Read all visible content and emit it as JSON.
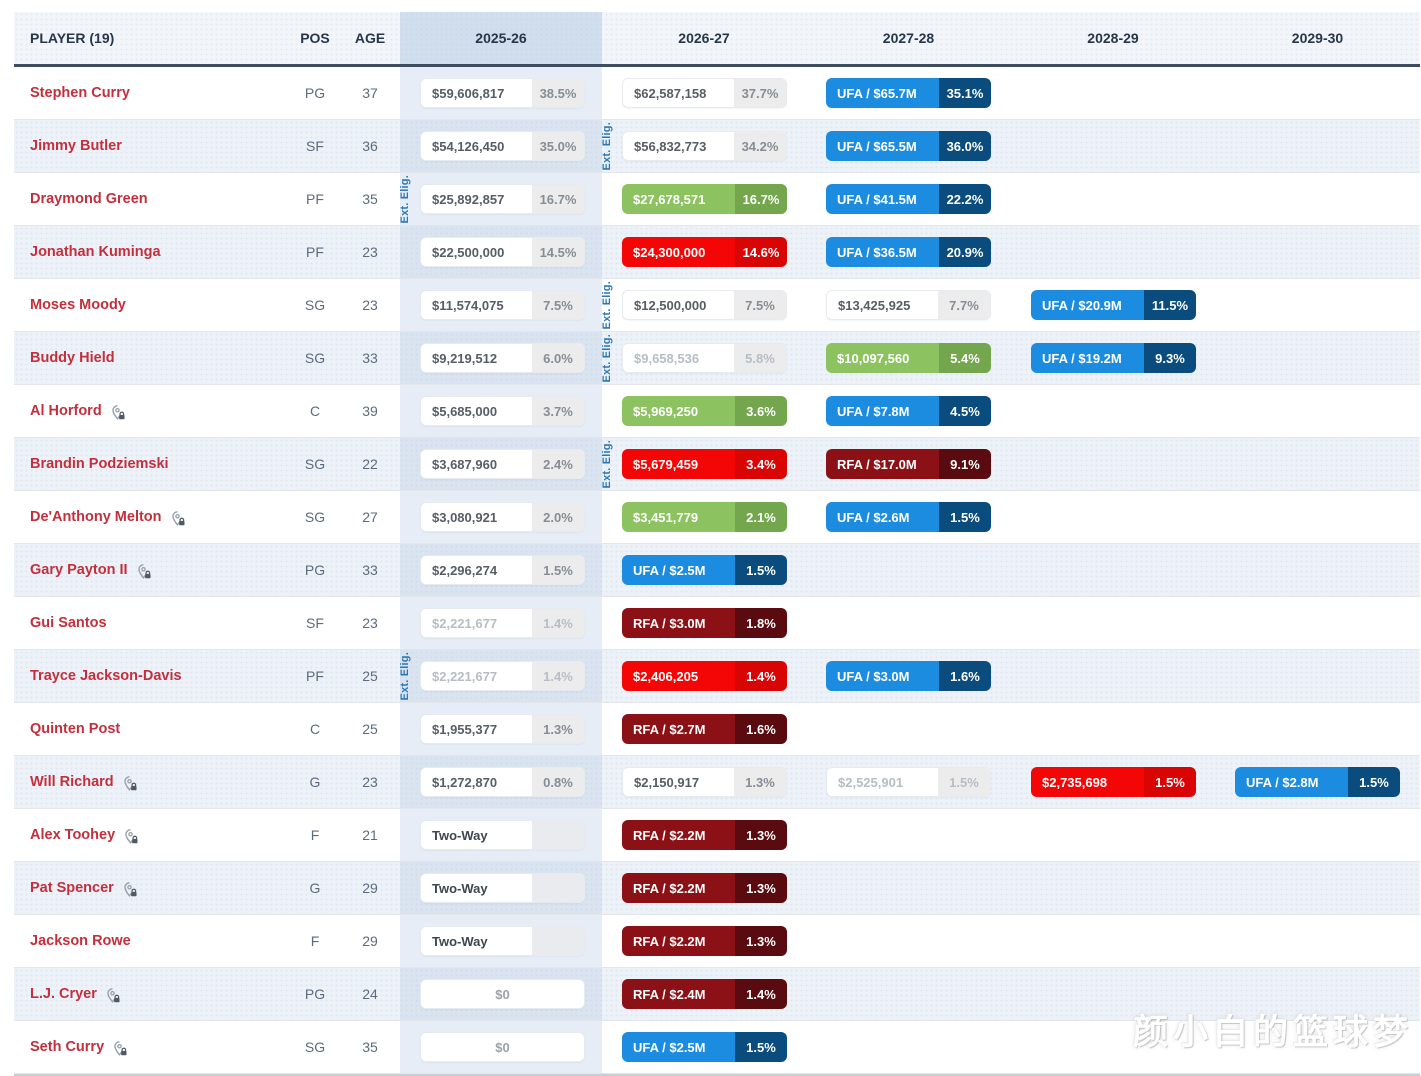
{
  "header": {
    "player_label": "PLAYER (19)",
    "pos_label": "POS",
    "age_label": "AGE",
    "seasons": [
      "2025-26",
      "2026-27",
      "2027-28",
      "2028-29",
      "2029-30"
    ]
  },
  "ext_elig_label": "Ext. Elig.",
  "watermark": "颜小白的篮球梦",
  "icons": {
    "pin_lock": "pin-lock-icon"
  },
  "colors": {
    "player-red": "#c32f3d",
    "header-text": "#27364a",
    "pos-text": "#5b6b7d",
    "ext-blue": "#2b77b6",
    "row-alt": "#edf2f8",
    "col-highlight": "rgba(178,200,228,0.32)",
    "col-highlight-head": "rgba(165,190,222,0.42)",
    "chip-green": "#8cc360",
    "chip-green-dark": "#73a64d",
    "chip-red": "#f40606",
    "chip-red-dark": "#d90505",
    "chip-blue": "#1b8ce0",
    "chip-blue-dark": "#0a4c7d",
    "chip-maroon": "#8c1117",
    "chip-maroon-dark": "#5a0b0f",
    "chip-gray-pct": "#ececec",
    "chip-text": "#575d66",
    "chip-muted-text": "#b7bdc5",
    "divider": "#e2e6ea",
    "header-border": "#3e4c60"
  },
  "players": [
    {
      "name": "Stephen Curry",
      "pos": "PG",
      "age": "37",
      "lock": false,
      "cells": [
        {
          "type": "white",
          "value": "$59,606,817",
          "pct": "38.5%"
        },
        {
          "type": "white",
          "value": "$62,587,158",
          "pct": "37.7%"
        },
        {
          "type": "blue",
          "value": "UFA / $65.7M",
          "pct": "35.1%"
        },
        null,
        null
      ]
    },
    {
      "name": "Jimmy Butler",
      "pos": "SF",
      "age": "36",
      "lock": false,
      "cells": [
        {
          "type": "white",
          "value": "$54,126,450",
          "pct": "35.0%"
        },
        {
          "type": "white",
          "value": "$56,832,773",
          "pct": "34.2%",
          "ext": true
        },
        {
          "type": "blue",
          "value": "UFA / $65.5M",
          "pct": "36.0%"
        },
        null,
        null
      ]
    },
    {
      "name": "Draymond Green",
      "pos": "PF",
      "age": "35",
      "lock": false,
      "cells": [
        {
          "type": "white",
          "value": "$25,892,857",
          "pct": "16.7%",
          "ext": true
        },
        {
          "type": "green",
          "value": "$27,678,571",
          "pct": "16.7%"
        },
        {
          "type": "blue",
          "value": "UFA / $41.5M",
          "pct": "22.2%"
        },
        null,
        null
      ]
    },
    {
      "name": "Jonathan Kuminga",
      "pos": "PF",
      "age": "23",
      "lock": false,
      "cells": [
        {
          "type": "white",
          "value": "$22,500,000",
          "pct": "14.5%"
        },
        {
          "type": "red",
          "value": "$24,300,000",
          "pct": "14.6%"
        },
        {
          "type": "blue",
          "value": "UFA / $36.5M",
          "pct": "20.9%"
        },
        null,
        null
      ]
    },
    {
      "name": "Moses Moody",
      "pos": "SG",
      "age": "23",
      "lock": false,
      "cells": [
        {
          "type": "white",
          "value": "$11,574,075",
          "pct": "7.5%"
        },
        {
          "type": "white",
          "value": "$12,500,000",
          "pct": "7.5%",
          "ext": true
        },
        {
          "type": "white",
          "value": "$13,425,925",
          "pct": "7.7%"
        },
        {
          "type": "blue",
          "value": "UFA / $20.9M",
          "pct": "11.5%"
        },
        null
      ]
    },
    {
      "name": "Buddy Hield",
      "pos": "SG",
      "age": "33",
      "lock": false,
      "cells": [
        {
          "type": "white",
          "value": "$9,219,512",
          "pct": "6.0%"
        },
        {
          "type": "white-muted",
          "value": "$9,658,536",
          "pct": "5.8%",
          "ext": true
        },
        {
          "type": "green",
          "value": "$10,097,560",
          "pct": "5.4%"
        },
        {
          "type": "blue",
          "value": "UFA / $19.2M",
          "pct": "9.3%"
        },
        null
      ]
    },
    {
      "name": "Al Horford",
      "pos": "C",
      "age": "39",
      "lock": true,
      "cells": [
        {
          "type": "white",
          "value": "$5,685,000",
          "pct": "3.7%"
        },
        {
          "type": "green",
          "value": "$5,969,250",
          "pct": "3.6%"
        },
        {
          "type": "blue",
          "value": "UFA / $7.8M",
          "pct": "4.5%"
        },
        null,
        null
      ]
    },
    {
      "name": "Brandin Podziemski",
      "pos": "SG",
      "age": "22",
      "lock": false,
      "cells": [
        {
          "type": "white",
          "value": "$3,687,960",
          "pct": "2.4%"
        },
        {
          "type": "red",
          "value": "$5,679,459",
          "pct": "3.4%",
          "ext": true
        },
        {
          "type": "darkred",
          "value": "RFA / $17.0M",
          "pct": "9.1%"
        },
        null,
        null
      ]
    },
    {
      "name": "De'Anthony Melton",
      "pos": "SG",
      "age": "27",
      "lock": true,
      "cells": [
        {
          "type": "white",
          "value": "$3,080,921",
          "pct": "2.0%"
        },
        {
          "type": "green",
          "value": "$3,451,779",
          "pct": "2.1%"
        },
        {
          "type": "blue",
          "value": "UFA / $2.6M",
          "pct": "1.5%"
        },
        null,
        null
      ]
    },
    {
      "name": "Gary Payton II",
      "pos": "PG",
      "age": "33",
      "lock": true,
      "cells": [
        {
          "type": "white",
          "value": "$2,296,274",
          "pct": "1.5%"
        },
        {
          "type": "blue",
          "value": "UFA / $2.5M",
          "pct": "1.5%"
        },
        null,
        null,
        null
      ]
    },
    {
      "name": "Gui Santos",
      "pos": "SF",
      "age": "23",
      "lock": false,
      "cells": [
        {
          "type": "white-muted",
          "value": "$2,221,677",
          "pct": "1.4%"
        },
        {
          "type": "darkred",
          "value": "RFA / $3.0M",
          "pct": "1.8%"
        },
        null,
        null,
        null
      ]
    },
    {
      "name": "Trayce Jackson-Davis",
      "pos": "PF",
      "age": "25",
      "lock": false,
      "cells": [
        {
          "type": "white-muted",
          "value": "$2,221,677",
          "pct": "1.4%",
          "ext": true
        },
        {
          "type": "red",
          "value": "$2,406,205",
          "pct": "1.4%"
        },
        {
          "type": "blue",
          "value": "UFA / $3.0M",
          "pct": "1.6%"
        },
        null,
        null
      ]
    },
    {
      "name": "Quinten Post",
      "pos": "C",
      "age": "25",
      "lock": false,
      "cells": [
        {
          "type": "white",
          "value": "$1,955,377",
          "pct": "1.3%"
        },
        {
          "type": "darkred",
          "value": "RFA / $2.7M",
          "pct": "1.6%"
        },
        null,
        null,
        null
      ]
    },
    {
      "name": "Will Richard",
      "pos": "G",
      "age": "23",
      "lock": true,
      "cells": [
        {
          "type": "white",
          "value": "$1,272,870",
          "pct": "0.8%"
        },
        {
          "type": "white",
          "value": "$2,150,917",
          "pct": "1.3%"
        },
        {
          "type": "white-muted",
          "value": "$2,525,901",
          "pct": "1.5%"
        },
        {
          "type": "red",
          "value": "$2,735,698",
          "pct": "1.5%"
        },
        {
          "type": "blue",
          "value": "UFA / $2.8M",
          "pct": "1.5%"
        }
      ]
    },
    {
      "name": "Alex Toohey",
      "pos": "F",
      "age": "21",
      "lock": true,
      "cells": [
        {
          "type": "twoway",
          "value": "Two-Way",
          "pct": ""
        },
        {
          "type": "darkred",
          "value": "RFA / $2.2M",
          "pct": "1.3%"
        },
        null,
        null,
        null
      ]
    },
    {
      "name": "Pat Spencer",
      "pos": "G",
      "age": "29",
      "lock": true,
      "cells": [
        {
          "type": "twoway",
          "value": "Two-Way",
          "pct": ""
        },
        {
          "type": "darkred",
          "value": "RFA / $2.2M",
          "pct": "1.3%"
        },
        null,
        null,
        null
      ]
    },
    {
      "name": "Jackson Rowe",
      "pos": "F",
      "age": "29",
      "lock": false,
      "cells": [
        {
          "type": "twoway",
          "value": "Two-Way",
          "pct": ""
        },
        {
          "type": "darkred",
          "value": "RFA / $2.2M",
          "pct": "1.3%"
        },
        null,
        null,
        null
      ]
    },
    {
      "name": "L.J. Cryer",
      "pos": "PG",
      "age": "24",
      "lock": true,
      "cells": [
        {
          "type": "zero",
          "value": "$0"
        },
        {
          "type": "darkred",
          "value": "RFA / $2.4M",
          "pct": "1.4%"
        },
        null,
        null,
        null
      ]
    },
    {
      "name": "Seth Curry",
      "pos": "SG",
      "age": "35",
      "lock": true,
      "cells": [
        {
          "type": "zero",
          "value": "$0"
        },
        {
          "type": "blue",
          "value": "UFA / $2.5M",
          "pct": "1.5%"
        },
        null,
        null,
        null
      ]
    }
  ]
}
